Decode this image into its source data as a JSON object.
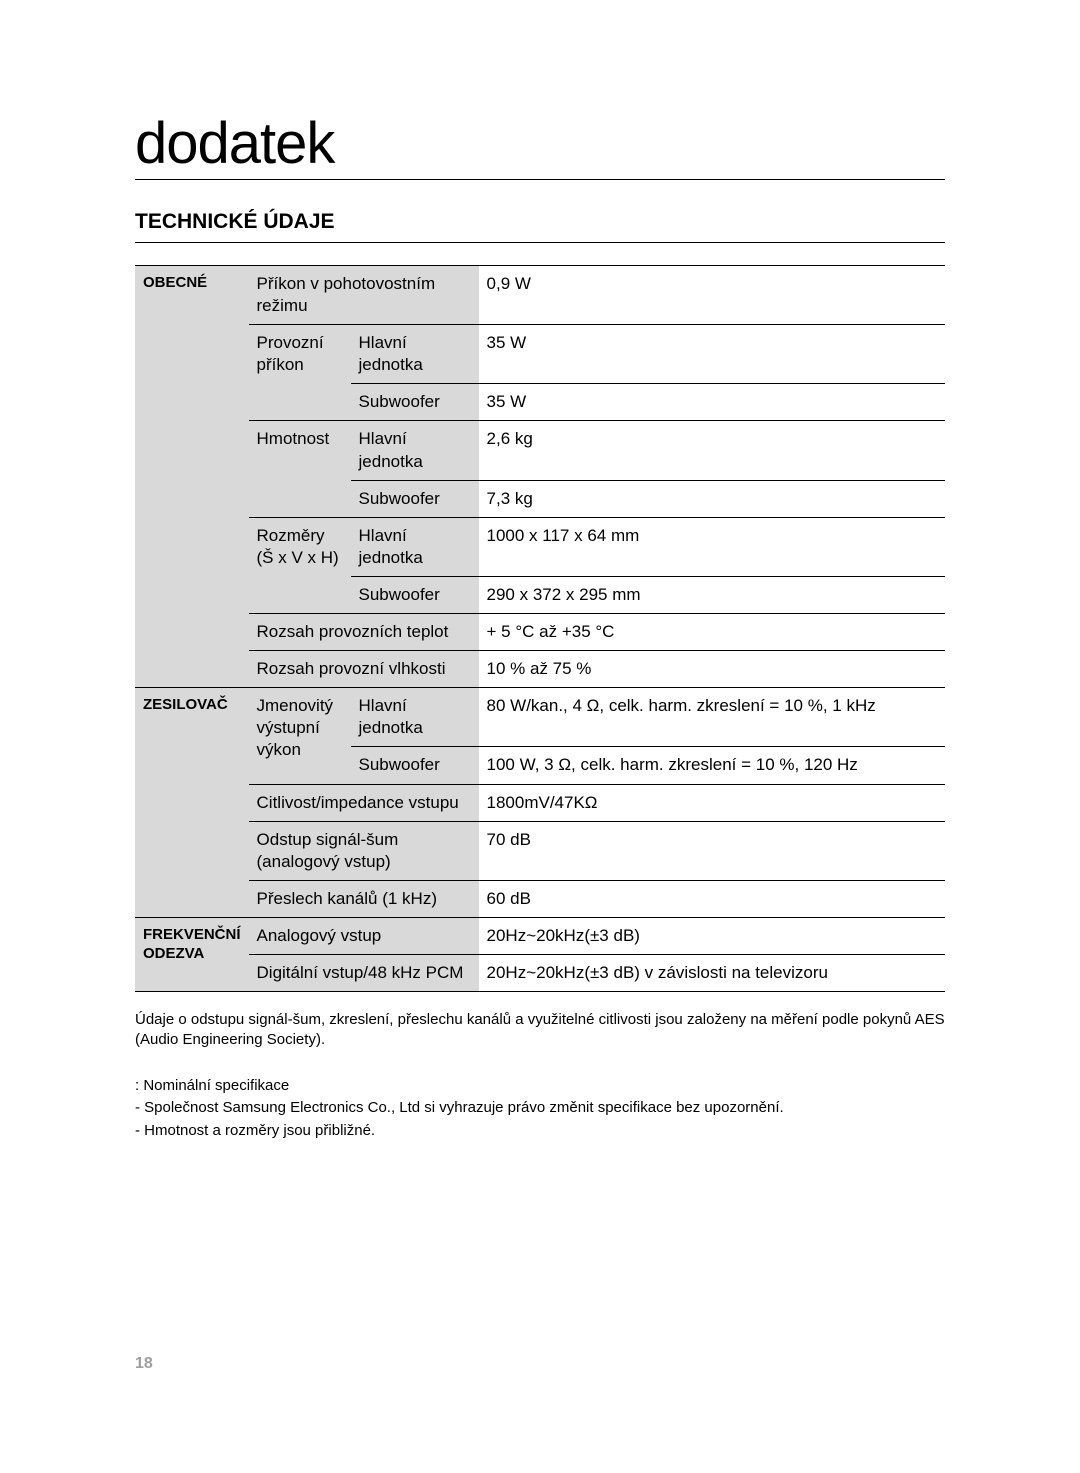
{
  "title": "dodatek",
  "subtitle": "TECHNICKÉ ÚDAJE",
  "sections": {
    "obecne": {
      "label": "OBECNÉ",
      "standby_power": {
        "label": "Příkon v pohotovostním režimu",
        "value": "0,9 W"
      },
      "operating_power": {
        "label": "Provozní příkon",
        "main": {
          "label": "Hlavní jednotka",
          "value": "35 W"
        },
        "sub": {
          "label": "Subwoofer",
          "value": "35 W"
        }
      },
      "weight": {
        "label": "Hmotnost",
        "main": {
          "label": "Hlavní jednotka",
          "value": "2,6 kg"
        },
        "sub": {
          "label": "Subwoofer",
          "value": "7,3 kg"
        }
      },
      "dimensions": {
        "label": "Rozměry (Š x V x H)",
        "main": {
          "label": "Hlavní jednotka",
          "value": "1000 x 117 x 64 mm"
        },
        "sub": {
          "label": "Subwoofer",
          "value": "290 x 372 x 295 mm"
        }
      },
      "temp_range": {
        "label": "Rozsah provozních teplot",
        "value": "+ 5 °C až +35 °C"
      },
      "humidity": {
        "label": "Rozsah provozní vlhkosti",
        "value": "10 % až 75 %"
      }
    },
    "zesilovac": {
      "label": "ZESILOVAČ",
      "rated_output": {
        "label": "Jmenovitý výstupní výkon",
        "main": {
          "label": "Hlavní jednotka",
          "value": "80 W/kan., 4 Ω, celk. harm. zkreslení = 10 %, 1 kHz"
        },
        "sub": {
          "label": "Subwoofer",
          "value": "100 W, 3 Ω, celk. harm. zkreslení = 10 %, 120 Hz"
        }
      },
      "sensitivity": {
        "label": "Citlivost/impedance vstupu",
        "value": "1800mV/47KΩ"
      },
      "snr": {
        "label": "Odstup signál-šum (analogový vstup)",
        "value": "70 dB"
      },
      "crosstalk": {
        "label": "Přeslech kanálů (1 kHz)",
        "value": "60 dB"
      }
    },
    "freq": {
      "label": "FREKVENČNÍ ODEZVA",
      "analog": {
        "label": "Analogový vstup",
        "value": "20Hz~20kHz(±3 dB)"
      },
      "digital": {
        "label": "Digitální vstup/48 kHz PCM",
        "value": "20Hz~20kHz(±3 dB) v závislosti na televizoru"
      }
    }
  },
  "note1": "Údaje o odstupu signál-šum, zkreslení, přeslechu kanálů a využitelné citlivosti jsou založeny na měření podle pokynů AES (Audio Engineering Society).",
  "bullets": {
    "b1": " : Nominální specifikace",
    "b2": "- Společnost Samsung Electronics Co., Ltd si vyhrazuje právo změnit specifikace bez upozornění.",
    "b3": "- Hmotnost a rozměry jsou přibližné."
  },
  "page_number": "18"
}
